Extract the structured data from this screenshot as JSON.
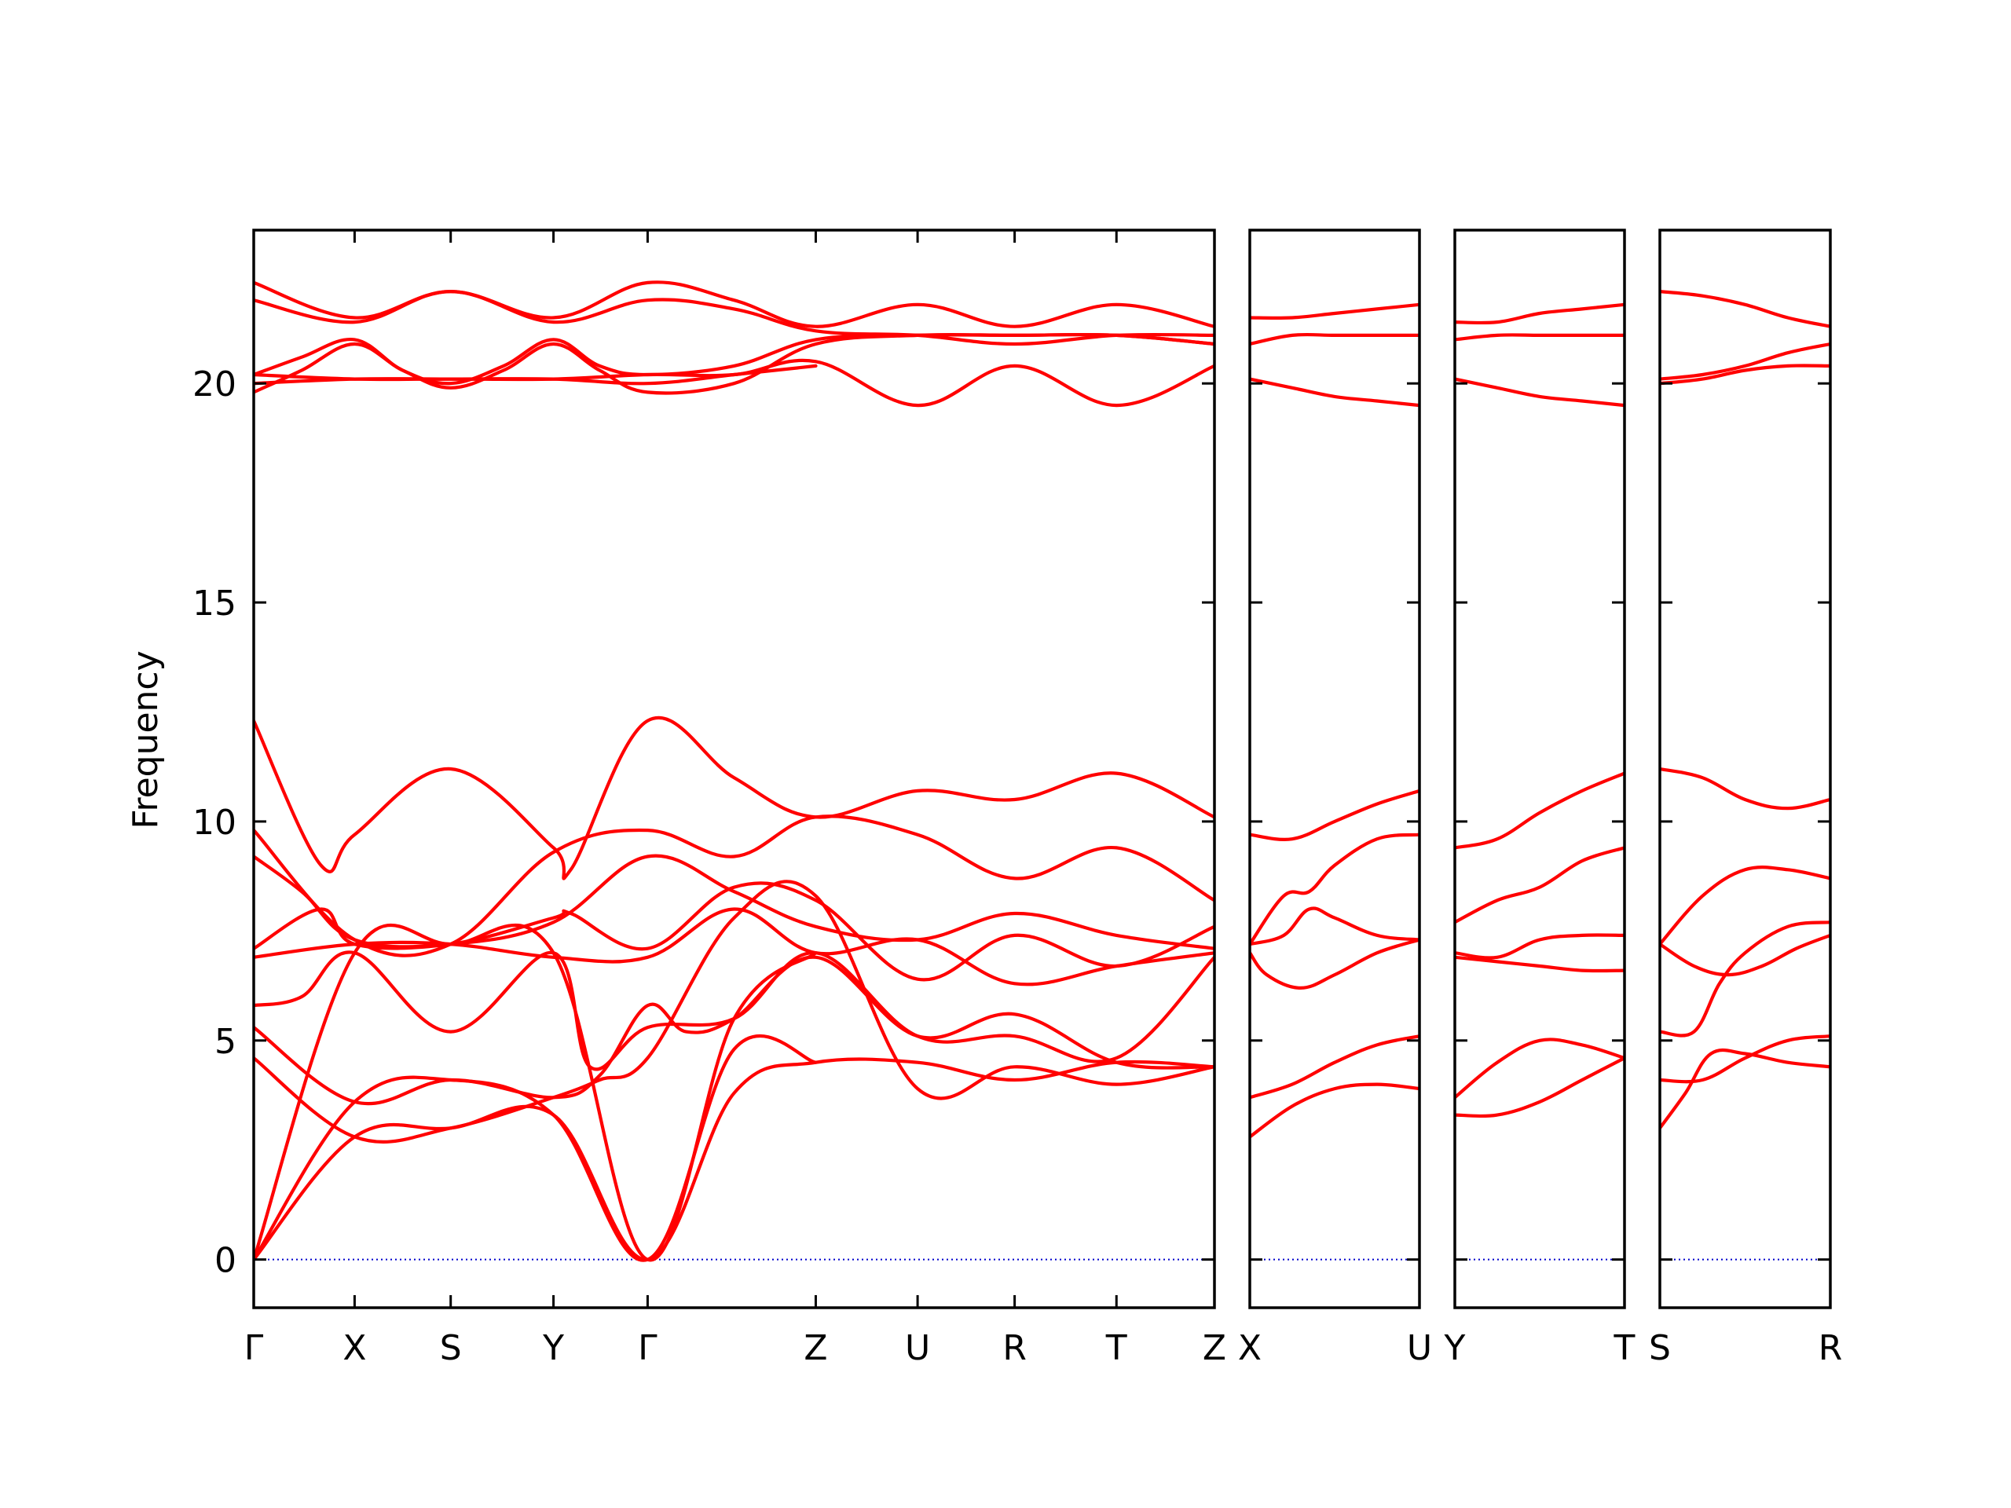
{
  "chart_data": {
    "type": "line",
    "ylabel": "Frequency",
    "ylim": [
      -1.1,
      23.5
    ],
    "yticks": [
      0,
      5,
      10,
      15,
      20
    ],
    "colors": {
      "bands": "#ff0000",
      "zero_line": "#0000cc",
      "axes": "#000000"
    },
    "panels": [
      {
        "labels": [
          "Γ",
          "X",
          "S",
          "Y",
          "Γ",
          "Z",
          "U",
          "R",
          "T",
          "Z"
        ],
        "label_pos": [
          0,
          0.105,
          0.205,
          0.312,
          0.41,
          0.585,
          0.691,
          0.792,
          0.898,
          1.0
        ],
        "bands": [
          {
            "x": [
              0,
              0.105,
              0.205,
              0.312,
              0.41,
              0.5,
              0.585,
              0.691,
              0.792,
              0.898,
              1.0
            ],
            "y": [
              22.3,
              21.5,
              22.1,
              21.5,
              22.3,
              21.9,
              21.3,
              21.8,
              21.3,
              21.8,
              21.3
            ]
          },
          {
            "x": [
              0,
              0.105,
              0.205,
              0.312,
              0.41,
              0.5,
              0.585,
              0.691,
              0.792,
              0.898,
              1.0
            ],
            "y": [
              21.9,
              21.4,
              22.1,
              21.4,
              21.9,
              21.7,
              21.2,
              21.1,
              20.9,
              21.1,
              21.1
            ]
          },
          {
            "x": [
              0,
              0.05,
              0.105,
              0.155,
              0.205,
              0.26,
              0.312,
              0.36,
              0.41,
              0.5,
              0.585,
              0.691,
              0.792,
              0.898,
              1.0
            ],
            "y": [
              20.2,
              20.6,
              21.0,
              20.3,
              20.0,
              20.4,
              21.0,
              20.4,
              20.2,
              20.4,
              21.0,
              21.1,
              21.1,
              21.1,
              20.9
            ]
          },
          {
            "x": [
              0,
              0.05,
              0.105,
              0.155,
              0.205,
              0.26,
              0.312,
              0.36,
              0.41,
              0.5,
              0.585,
              0.691,
              0.792,
              0.898,
              1.0
            ],
            "y": [
              19.8,
              20.3,
              20.9,
              20.3,
              19.9,
              20.3,
              20.9,
              20.3,
              19.8,
              20.0,
              20.9,
              21.1,
              21.1,
              21.1,
              20.9
            ]
          },
          {
            "x": [
              0,
              0.105,
              0.205,
              0.312,
              0.41,
              0.5,
              0.585,
              0.691,
              0.792,
              0.898,
              1.0
            ],
            "y": [
              20.2,
              20.1,
              20.1,
              20.1,
              20.2,
              20.2,
              20.5,
              19.5,
              20.4,
              19.5,
              20.4
            ]
          },
          {
            "x": [
              0,
              0.105,
              0.205,
              0.312,
              0.41,
              0.5,
              0.585
            ],
            "y": [
              20.0,
              20.1,
              20.1,
              20.1,
              20.0,
              20.2,
              20.4
            ]
          },
          {
            "x": [
              0,
              0.07,
              0.105,
              0.205,
              0.312,
              0.33,
              0.41,
              0.5,
              0.585,
              0.691,
              0.792,
              0.898,
              1.0
            ],
            "y": [
              12.3,
              9.0,
              9.7,
              11.2,
              9.4,
              8.9,
              12.3,
              11.0,
              10.1,
              10.7,
              10.5,
              11.1,
              10.1
            ]
          },
          {
            "x": [
              0,
              0.105,
              0.205,
              0.312,
              0.41,
              0.5,
              0.585,
              0.691,
              0.792,
              0.898,
              1.0
            ],
            "y": [
              9.8,
              7.3,
              7.2,
              9.3,
              9.8,
              9.2,
              10.1,
              9.7,
              8.7,
              9.4,
              8.2
            ]
          },
          {
            "x": [
              0,
              0.05,
              0.105,
              0.205,
              0.312,
              0.41,
              0.5,
              0.585,
              0.691,
              0.792,
              0.898,
              1.0
            ],
            "y": [
              9.2,
              8.4,
              7.3,
              7.2,
              7.7,
              9.2,
              8.4,
              7.6,
              7.3,
              7.9,
              7.4,
              7.1
            ]
          },
          {
            "x": [
              0,
              0.07,
              0.105,
              0.205,
              0.312,
              0.33,
              0.41,
              0.5,
              0.585,
              0.691,
              0.792,
              0.898,
              1.0
            ],
            "y": [
              7.1,
              8.0,
              7.2,
              7.2,
              7.8,
              7.9,
              7.1,
              8.5,
              8.2,
              6.4,
              7.4,
              6.7,
              7.6
            ]
          },
          {
            "x": [
              0,
              0.105,
              0.205,
              0.312,
              0.41,
              0.5,
              0.585,
              0.691,
              0.792,
              0.898,
              1.0
            ],
            "y": [
              6.9,
              7.2,
              7.2,
              6.9,
              6.9,
              8.0,
              7.0,
              7.3,
              6.3,
              6.7,
              7.0
            ]
          },
          {
            "x": [
              0,
              0.05,
              0.105,
              0.205,
              0.312,
              0.35,
              0.41,
              0.5,
              0.585,
              0.691,
              0.792,
              0.898,
              1.0
            ],
            "y": [
              5.8,
              6.0,
              7.0,
              5.2,
              7.0,
              4.4,
              5.3,
              5.5,
              7.0,
              5.1,
              5.1,
              4.6,
              6.9
            ]
          },
          {
            "x": [
              0,
              0.105,
              0.205,
              0.312,
              0.36,
              0.41,
              0.45,
              0.5,
              0.585,
              0.691,
              0.792,
              0.898,
              1.0
            ],
            "y": [
              5.3,
              3.6,
              4.1,
              3.7,
              4.2,
              5.8,
              5.2,
              5.5,
              6.9,
              5.1,
              5.6,
              4.5,
              4.4
            ]
          },
          {
            "x": [
              0,
              0.105,
              0.205,
              0.312,
              0.36,
              0.41,
              0.5,
              0.585,
              0.691,
              0.792,
              0.898,
              1.0
            ],
            "y": [
              4.6,
              2.8,
              3.0,
              3.7,
              4.1,
              4.6,
              7.8,
              8.3,
              3.9,
              4.4,
              4.0,
              4.4
            ]
          },
          {
            "x": [
              0,
              0.105,
              0.205,
              0.312,
              0.41,
              0.5,
              0.585,
              0.691,
              0.792,
              0.898,
              1.0
            ],
            "y": [
              0,
              2.8,
              3.0,
              3.3,
              0,
              3.8,
              4.5,
              4.5,
              4.1,
              4.5,
              4.4
            ]
          },
          {
            "x": [
              0,
              0.105,
              0.205,
              0.312,
              0.41,
              0.5,
              0.585
            ],
            "y": [
              0,
              3.6,
              4.1,
              3.3,
              0,
              4.8,
              4.5
            ]
          },
          {
            "x": [
              0,
              0.105,
              0.205,
              0.312,
              0.41,
              0.5,
              0.585
            ],
            "y": [
              0,
              7.0,
              7.2,
              7.0,
              0,
              5.5,
              7.0
            ]
          }
        ]
      },
      {
        "labels": [
          "X",
          "U"
        ],
        "label_pos": [
          0,
          1.0
        ],
        "bands": [
          {
            "x": [
              0,
              0.25,
              0.5,
              0.75,
              1.0
            ],
            "y": [
              21.5,
              21.5,
              21.6,
              21.7,
              21.8
            ]
          },
          {
            "x": [
              0,
              0.25,
              0.5,
              0.75,
              1.0
            ],
            "y": [
              20.9,
              21.1,
              21.1,
              21.1,
              21.1
            ]
          },
          {
            "x": [
              0,
              0.25,
              0.5,
              0.75,
              1.0
            ],
            "y": [
              20.1,
              19.9,
              19.7,
              19.6,
              19.5
            ]
          },
          {
            "x": [
              0,
              0.25,
              0.5,
              0.75,
              1.0
            ],
            "y": [
              9.7,
              9.6,
              10.0,
              10.4,
              10.7
            ]
          },
          {
            "x": [
              0,
              0.2,
              0.35,
              0.5,
              0.75,
              1.0
            ],
            "y": [
              7.2,
              8.3,
              8.4,
              9.0,
              9.6,
              9.7
            ]
          },
          {
            "x": [
              0,
              0.2,
              0.35,
              0.5,
              0.75,
              1.0
            ],
            "y": [
              7.2,
              7.4,
              8.0,
              7.8,
              7.4,
              7.3
            ]
          },
          {
            "x": [
              0,
              0.1,
              0.3,
              0.5,
              0.75,
              1.0
            ],
            "y": [
              7.0,
              6.5,
              6.2,
              6.5,
              7.0,
              7.3
            ]
          },
          {
            "x": [
              0,
              0.25,
              0.5,
              0.75,
              1.0
            ],
            "y": [
              3.7,
              4.0,
              4.5,
              4.9,
              5.1
            ]
          },
          {
            "x": [
              0,
              0.25,
              0.5,
              0.75,
              1.0
            ],
            "y": [
              2.8,
              3.5,
              3.9,
              4.0,
              3.9
            ]
          }
        ]
      },
      {
        "labels": [
          "Y",
          "T"
        ],
        "label_pos": [
          0,
          1.0
        ],
        "bands": [
          {
            "x": [
              0,
              0.25,
              0.5,
              0.75,
              1.0
            ],
            "y": [
              21.4,
              21.4,
              21.6,
              21.7,
              21.8
            ]
          },
          {
            "x": [
              0,
              0.25,
              0.5,
              0.75,
              1.0
            ],
            "y": [
              21.0,
              21.1,
              21.1,
              21.1,
              21.1
            ]
          },
          {
            "x": [
              0,
              0.25,
              0.5,
              0.75,
              1.0
            ],
            "y": [
              20.1,
              19.9,
              19.7,
              19.6,
              19.5
            ]
          },
          {
            "x": [
              0,
              0.25,
              0.5,
              0.75,
              1.0
            ],
            "y": [
              9.4,
              9.6,
              10.2,
              10.7,
              11.1
            ]
          },
          {
            "x": [
              0,
              0.25,
              0.5,
              0.75,
              1.0
            ],
            "y": [
              7.7,
              8.2,
              8.5,
              9.1,
              9.4
            ]
          },
          {
            "x": [
              0,
              0.25,
              0.5,
              0.75,
              1.0
            ],
            "y": [
              7.0,
              6.9,
              7.3,
              7.4,
              7.4
            ]
          },
          {
            "x": [
              0,
              0.25,
              0.5,
              0.75,
              1.0
            ],
            "y": [
              6.9,
              6.8,
              6.7,
              6.6,
              6.6
            ]
          },
          {
            "x": [
              0,
              0.25,
              0.5,
              0.75,
              1.0
            ],
            "y": [
              3.7,
              4.5,
              5.0,
              4.9,
              4.6
            ]
          },
          {
            "x": [
              0,
              0.25,
              0.5,
              0.75,
              1.0
            ],
            "y": [
              3.3,
              3.3,
              3.6,
              4.1,
              4.6
            ]
          }
        ]
      },
      {
        "labels": [
          "S",
          "R"
        ],
        "label_pos": [
          0,
          1.0
        ],
        "bands": [
          {
            "x": [
              0,
              0.25,
              0.5,
              0.75,
              1.0
            ],
            "y": [
              22.1,
              22.0,
              21.8,
              21.5,
              21.3
            ]
          },
          {
            "x": [
              0,
              0.25,
              0.5,
              0.75,
              1.0
            ],
            "y": [
              20.1,
              20.2,
              20.4,
              20.7,
              20.9
            ]
          },
          {
            "x": [
              0,
              0.25,
              0.5,
              0.75,
              1.0
            ],
            "y": [
              20.0,
              20.1,
              20.3,
              20.4,
              20.4
            ]
          },
          {
            "x": [
              0,
              0.25,
              0.5,
              0.75,
              1.0
            ],
            "y": [
              11.2,
              11.0,
              10.5,
              10.3,
              10.5
            ]
          },
          {
            "x": [
              0,
              0.25,
              0.5,
              0.75,
              1.0
            ],
            "y": [
              7.2,
              8.3,
              8.9,
              8.9,
              8.7
            ]
          },
          {
            "x": [
              0,
              0.2,
              0.4,
              0.6,
              0.8,
              1.0
            ],
            "y": [
              7.2,
              6.7,
              6.5,
              6.7,
              7.1,
              7.4
            ]
          },
          {
            "x": [
              0,
              0.2,
              0.35,
              0.5,
              0.75,
              1.0
            ],
            "y": [
              5.2,
              5.2,
              6.3,
              7.0,
              7.6,
              7.7
            ]
          },
          {
            "x": [
              0,
              0.25,
              0.5,
              0.75,
              1.0
            ],
            "y": [
              4.1,
              4.1,
              4.6,
              5.0,
              5.1
            ]
          },
          {
            "x": [
              0,
              0.15,
              0.3,
              0.5,
              0.75,
              1.0
            ],
            "y": [
              3.0,
              3.8,
              4.7,
              4.7,
              4.5,
              4.4
            ]
          }
        ]
      }
    ]
  }
}
